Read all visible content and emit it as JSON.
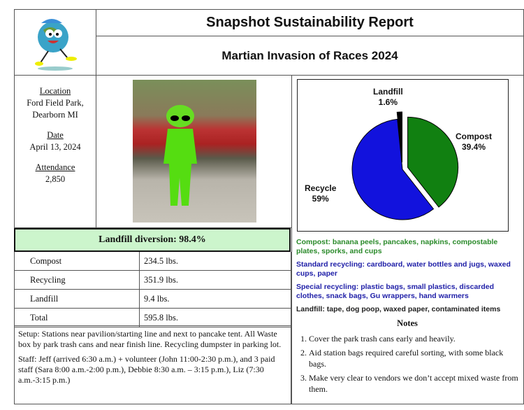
{
  "header": {
    "title": "Snapshot Sustainability Report",
    "subtitle": "Martian Invasion of Races 2024"
  },
  "info": {
    "location_label": "Location",
    "location_line1": "Ford Field Park,",
    "location_line2": "Dearborn MI",
    "date_label": "Date",
    "date": "April 13, 2024",
    "attendance_label": "Attendance",
    "attendance": "2,850"
  },
  "diversion": "Landfill diversion:  98.4%",
  "weights": [
    {
      "label": "Compost",
      "value": "234.5 lbs."
    },
    {
      "label": "Recycling",
      "value": "351.9 lbs."
    },
    {
      "label": "Landfill",
      "value": "9.4 lbs."
    },
    {
      "label": "Total",
      "value": "595.8 lbs."
    }
  ],
  "setup": "Setup: Stations near pavilion/starting line and next to pancake tent. All Waste box by park trash cans and near finish line. Recycling dumpster in parking lot.",
  "staff": "Staff: Jeff (arrived 6:30 a.m.) + volunteer (John 11:00-2:30 p.m.), and 3 paid staff (Sara 8:00 a.m.-2:00 p.m.), Debbie 8:30 a.m. – 3:15 p.m.), Liz (7:30 a.m.-3:15 p.m.)",
  "chart_data": {
    "type": "pie",
    "title": "",
    "slices": [
      {
        "name": "Compost",
        "value": 39.4,
        "label": "39.4%",
        "color": "#118011"
      },
      {
        "name": "Recycle",
        "value": 59,
        "label": "59%",
        "color": "#1212dd"
      },
      {
        "name": "Landfill",
        "value": 1.6,
        "label": "1.6%",
        "color": "#000000"
      }
    ]
  },
  "categories": {
    "compost": "Compost: banana peels, pancakes, napkins, compostable plates, sporks, and cups",
    "standard": "Standard recycling: cardboard, water bottles and jugs, waxed cups, paper",
    "special": "Special recycling: plastic bags, small plastics, discarded clothes, snack bags, Gu wrappers, hand warmers",
    "landfill": "Landfill: tape, dog poop, waxed paper, contaminated items"
  },
  "notes": {
    "title": "Notes",
    "items": [
      "Cover the park trash cans early and heavily.",
      "Aid station bags required careful sorting, with some black bags.",
      "Make very clear to vendors we don’t accept mixed waste from them."
    ]
  },
  "colors": {
    "banner": "#ccf5cc",
    "compost_text": "#2a8a2a",
    "recycle_text": "#2020a8"
  }
}
